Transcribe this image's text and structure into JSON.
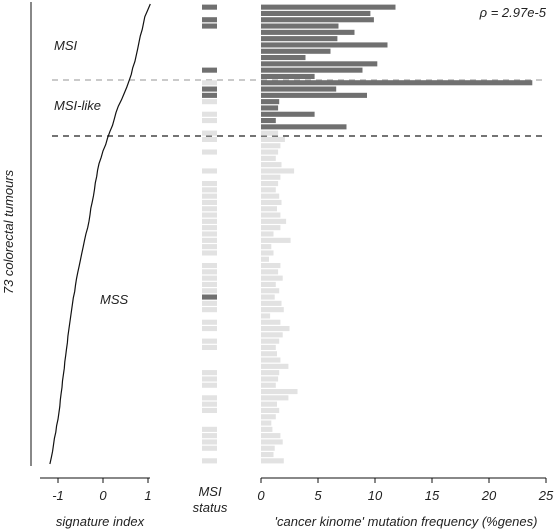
{
  "chart_data": {
    "type": "bar",
    "ylabel": "73 colorectal tumours",
    "annotation": "ρ = 2.97e-5",
    "group_labels": [
      "MSI",
      "MSI-like",
      "MSS"
    ],
    "n_tumours": 73,
    "signature_panel": {
      "xlabel": "signature index",
      "xticks": [
        -1,
        0,
        1
      ],
      "xlim": [
        -1.35,
        1.35
      ],
      "values": [
        1.05,
        0.99,
        0.93,
        0.9,
        0.87,
        0.83,
        0.8,
        0.77,
        0.74,
        0.71,
        0.66,
        0.63,
        0.58,
        0.53,
        0.47,
        0.41,
        0.34,
        0.29,
        0.25,
        0.21,
        0.15,
        0.1,
        0.06,
        0.0,
        -0.04,
        -0.09,
        -0.12,
        -0.14,
        -0.17,
        -0.19,
        -0.21,
        -0.24,
        -0.27,
        -0.29,
        -0.31,
        -0.34,
        -0.38,
        -0.41,
        -0.44,
        -0.47,
        -0.5,
        -0.53,
        -0.56,
        -0.59,
        -0.61,
        -0.63,
        -0.66,
        -0.68,
        -0.7,
        -0.72,
        -0.74,
        -0.76,
        -0.78,
        -0.79,
        -0.81,
        -0.83,
        -0.85,
        -0.86,
        -0.88,
        -0.9,
        -0.91,
        -0.93,
        -0.95,
        -0.96,
        -0.98,
        -1.0,
        -1.03,
        -1.05,
        -1.08,
        -1.1,
        -1.12,
        -1.15,
        -1.18
      ]
    },
    "msi_status_panel": {
      "xlabel": "MSI status",
      "status": [
        "MSI",
        "gap",
        "MSI",
        "MSI",
        "gap",
        "gap",
        "gap",
        "gap",
        "gap",
        "gap",
        "MSI",
        "gap",
        "MSS",
        "MSI",
        "MSI",
        "MSS",
        "gap",
        "MSS",
        "MSS",
        "gap",
        "MSS",
        "MSS",
        "gap",
        "MSS",
        "gap",
        "gap",
        "MSS",
        "gap",
        "MSS",
        "MSS",
        "MSS",
        "MSS",
        "MSS",
        "MSS",
        "MSS",
        "MSS",
        "MSS",
        "MSS",
        "MSS",
        "MSS",
        "gap",
        "MSS",
        "MSS",
        "MSS",
        "MSS",
        "MSS",
        "MSI",
        "MSS",
        "MSS",
        "gap",
        "MSS",
        "MSS",
        "gap",
        "MSS",
        "MSS",
        "gap",
        "gap",
        "gap",
        "MSS",
        "MSS",
        "MSS",
        "gap",
        "MSS",
        "MSS",
        "MSS",
        "gap",
        "gap",
        "MSS",
        "MSS",
        "MSS",
        "MSS",
        "gap",
        "MSS"
      ]
    },
    "mutation_panel": {
      "xlabel": "'cancer kinome' mutation frequency (%genes)",
      "xticks": [
        0,
        5,
        10,
        15,
        20,
        25
      ],
      "xlim": [
        0,
        25
      ],
      "values": [
        11.8,
        9.6,
        9.9,
        6.8,
        8.2,
        6.7,
        11.1,
        6.1,
        3.9,
        10.2,
        8.9,
        4.7,
        23.8,
        6.6,
        9.3,
        1.6,
        1.5,
        4.7,
        1.3,
        7.5,
        1.5,
        2.1,
        1.7,
        1.5,
        1.3,
        1.8,
        2.9,
        1.7,
        1.5,
        1.3,
        1.6,
        1.8,
        1.4,
        1.7,
        2.2,
        1.7,
        1.1,
        2.6,
        0.9,
        1.1,
        0.7,
        1.7,
        1.5,
        1.9,
        1.3,
        1.6,
        1.2,
        1.8,
        2.0,
        0.8,
        1.7,
        2.5,
        1.9,
        1.6,
        1.3,
        1.4,
        1.7,
        2.4,
        1.6,
        1.5,
        1.3,
        3.2,
        2.4,
        1.4,
        1.6,
        1.3,
        0.9,
        1.0,
        1.7,
        1.9,
        1.2,
        1.1,
        2.0
      ],
      "highlight_rows": 20
    },
    "colors": {
      "msi": "#707070",
      "mss": "#e2e2e2",
      "line": "#111111",
      "dash_msi": "#aaaaaa",
      "dash_mss": "#222222"
    }
  }
}
